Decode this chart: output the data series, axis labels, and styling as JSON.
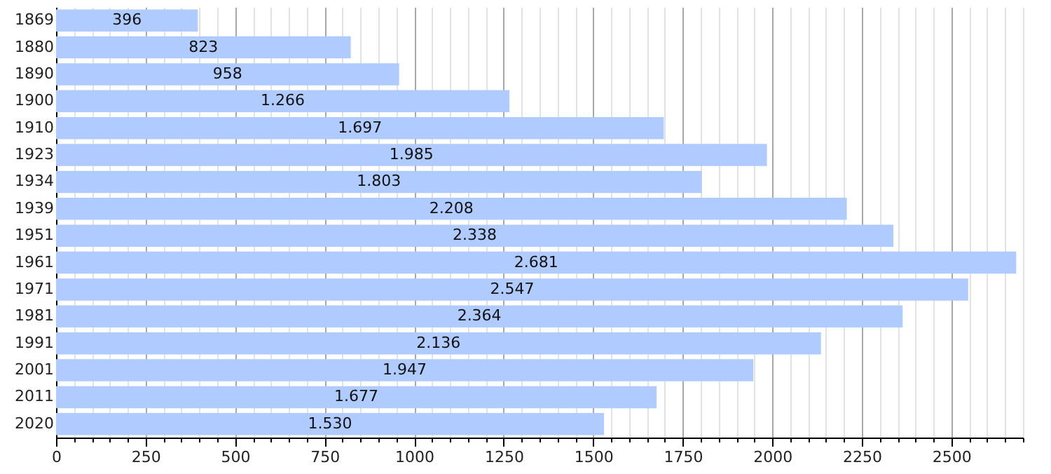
{
  "chart_data": {
    "type": "bar",
    "orientation": "horizontal",
    "categories": [
      "1869",
      "1880",
      "1890",
      "1900",
      "1910",
      "1923",
      "1934",
      "1939",
      "1951",
      "1961",
      "1971",
      "1981",
      "1991",
      "2001",
      "2011",
      "2020"
    ],
    "values": [
      396,
      823,
      958,
      1266,
      1697,
      1985,
      1803,
      2208,
      2338,
      2681,
      2547,
      2364,
      2136,
      1947,
      1677,
      1530
    ],
    "value_labels": [
      "396",
      "823",
      "958",
      "1.266",
      "1.697",
      "1.985",
      "1.803",
      "2.208",
      "2.338",
      "2.681",
      "2.547",
      "2.364",
      "2.136",
      "1.947",
      "1.677",
      "1.530"
    ],
    "color": "#b0cbff",
    "xlim": [
      0,
      2700
    ],
    "xticks": [
      0,
      {
        "value": 50,
        "label": null
      },
      {
        "value": 100,
        "label": null
      },
      {
        "value": 150,
        "label": null
      },
      {
        "value": 200,
        "label": null
      },
      250,
      {
        "value": 300,
        "label": null
      },
      {
        "value": 350,
        "label": null
      },
      {
        "value": 400,
        "label": null
      },
      {
        "value": 450,
        "label": null
      },
      500,
      {
        "value": 550,
        "label": null
      },
      {
        "value": 600,
        "label": null
      },
      {
        "value": 650,
        "label": null
      },
      {
        "value": 700,
        "label": null
      },
      750,
      {
        "value": 800,
        "label": null
      },
      {
        "value": 850,
        "label": null
      },
      {
        "value": 900,
        "label": null
      },
      {
        "value": 950,
        "label": null
      },
      1000,
      {
        "value": 1050,
        "label": null
      },
      {
        "value": 1100,
        "label": null
      },
      {
        "value": 1150,
        "label": null
      },
      {
        "value": 1200,
        "label": null
      },
      1250,
      {
        "value": 1300,
        "label": null
      },
      {
        "value": 1350,
        "label": null
      },
      {
        "value": 1400,
        "label": null
      },
      {
        "value": 1450,
        "label": null
      },
      1500,
      {
        "value": 1550,
        "label": null
      },
      {
        "value": 1600,
        "label": null
      },
      {
        "value": 1650,
        "label": null
      },
      {
        "value": 1700,
        "label": null
      },
      1750,
      {
        "value": 1800,
        "label": null
      },
      {
        "value": 1850,
        "label": null
      },
      {
        "value": 1900,
        "label": null
      },
      {
        "value": 1950,
        "label": null
      },
      2000,
      {
        "value": 2050,
        "label": null
      },
      {
        "value": 2100,
        "label": null
      },
      {
        "value": 2150,
        "label": null
      },
      {
        "value": 2200,
        "label": null
      },
      2250,
      {
        "value": 2300,
        "label": null
      },
      {
        "value": 2350,
        "label": null
      },
      {
        "value": 2400,
        "label": null
      },
      {
        "value": 2450,
        "label": null
      },
      2500,
      {
        "value": 2550,
        "label": null
      },
      {
        "value": 2600,
        "label": null
      },
      {
        "value": 2650,
        "label": null
      },
      {
        "value": 2700,
        "label": null
      }
    ],
    "grid": true
  }
}
